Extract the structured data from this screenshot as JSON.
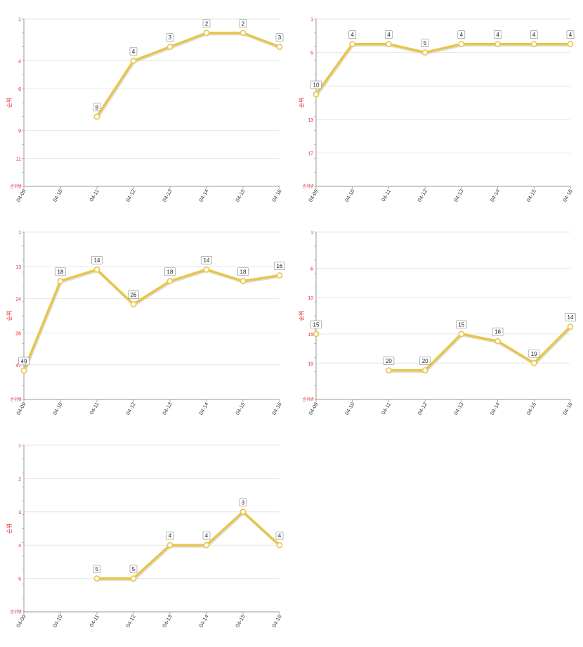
{
  "chart_data": [
    {
      "type": "line",
      "ylabel": "순위",
      "bottom_label": "순위밖",
      "x": [
        "04-09",
        "04-10",
        "04-11",
        "04-12",
        "04-13",
        "04-14",
        "04-15",
        "04-16"
      ],
      "y_reversed": true,
      "ylim": [
        1,
        13
      ],
      "yticks": [
        1,
        4,
        6,
        9,
        11
      ],
      "series": [
        {
          "values": [
            null,
            null,
            8,
            4,
            3,
            2,
            2,
            3
          ]
        }
      ],
      "grid": true
    },
    {
      "type": "line",
      "ylabel": "순위",
      "bottom_label": "순위밖",
      "x": [
        "04-09",
        "04-10",
        "04-11",
        "04-12",
        "04-13",
        "04-14",
        "04-15",
        "04-16"
      ],
      "y_reversed": true,
      "ylim": [
        1,
        21
      ],
      "yticks": [
        1,
        5,
        9,
        13,
        17
      ],
      "series": [
        {
          "values": [
            10,
            4,
            4,
            5,
            4,
            4,
            4,
            4
          ]
        }
      ],
      "grid": true
    },
    {
      "type": "line",
      "ylabel": "순위",
      "bottom_label": "순위밖",
      "x": [
        "04-09",
        "04-10",
        "04-11",
        "04-12",
        "04-13",
        "04-14",
        "04-15",
        "04-16"
      ],
      "y_reversed": true,
      "ylim": [
        1,
        59
      ],
      "yticks": [
        1,
        13,
        24,
        36,
        47
      ],
      "series": [
        {
          "values": [
            49,
            18,
            14,
            26,
            18,
            14,
            18,
            16
          ]
        }
      ],
      "grid": true
    },
    {
      "type": "line",
      "ylabel": "순위",
      "bottom_label": "순위밖",
      "x": [
        "04-09",
        "04-10",
        "04-11",
        "04-12",
        "04-13",
        "04-14",
        "04-15",
        "04-16"
      ],
      "y_reversed": true,
      "ylim": [
        1,
        24
      ],
      "yticks": [
        1,
        6,
        10,
        15,
        19
      ],
      "series": [
        {
          "values": [
            15,
            null,
            20,
            20,
            15,
            16,
            19,
            14
          ]
        }
      ],
      "grid": true
    },
    {
      "type": "line",
      "ylabel": "순위",
      "bottom_label": "순위밖",
      "x": [
        "04-09",
        "04-10",
        "04-11",
        "04-12",
        "04-13",
        "04-14",
        "04-15",
        "04-16"
      ],
      "y_reversed": true,
      "ylim": [
        1,
        6
      ],
      "yticks": [
        1,
        2,
        3,
        4,
        5
      ],
      "series": [
        {
          "values": [
            null,
            null,
            5,
            5,
            4,
            4,
            3,
            4
          ]
        }
      ],
      "grid": true
    }
  ],
  "colors": {
    "line": "#e8c54a",
    "line_shadow": "#c9c9c9",
    "axis_label": "#e8232a",
    "tick_label": "#e8232a",
    "grid": "#e6e6e6",
    "axis": "#999999"
  }
}
